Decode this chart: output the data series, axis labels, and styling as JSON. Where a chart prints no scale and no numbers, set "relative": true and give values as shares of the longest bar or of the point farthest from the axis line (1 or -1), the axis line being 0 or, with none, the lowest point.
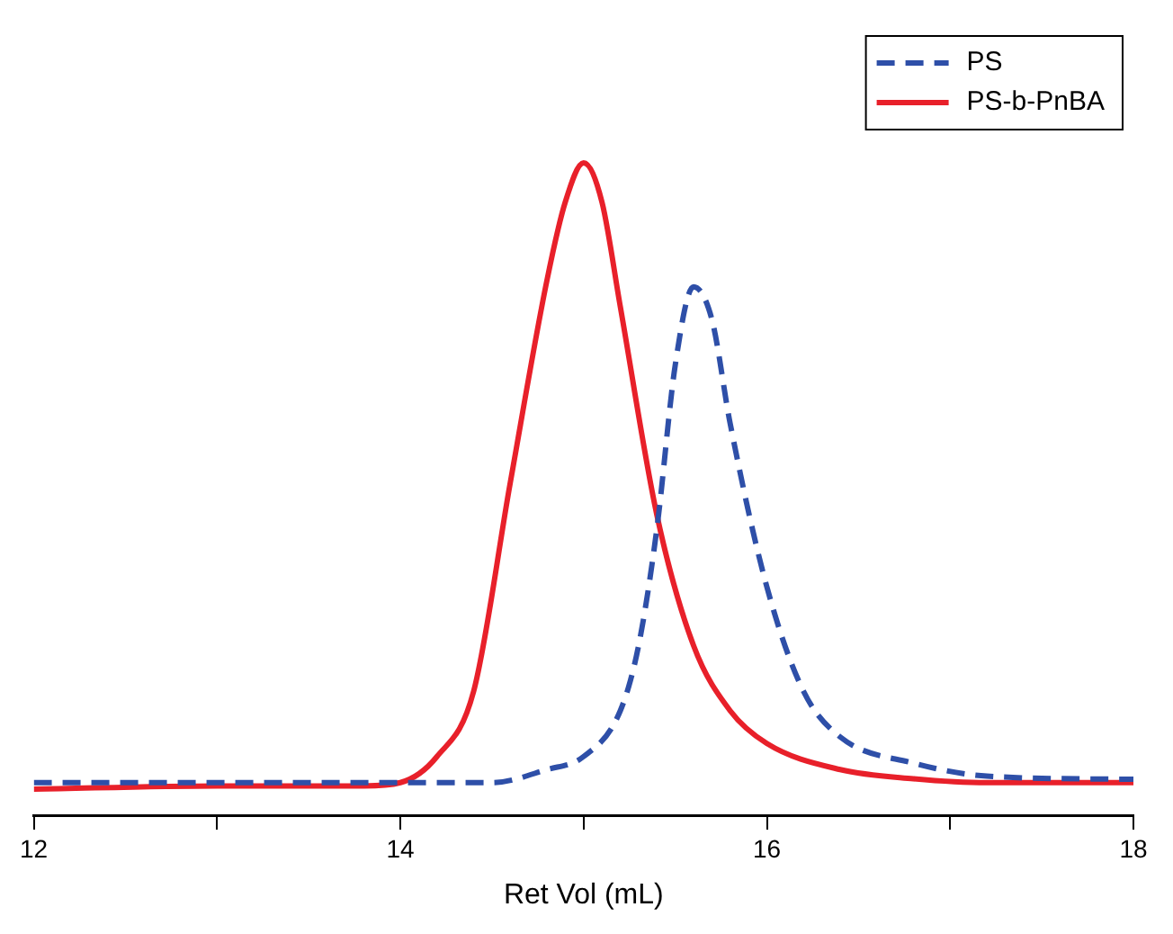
{
  "chart_data": {
    "type": "line",
    "xlabel": "Ret Vol (mL)",
    "relative": true,
    "xlim": [
      12,
      18
    ],
    "xticks": [
      12,
      {
        "value": 13,
        "label": null
      },
      14,
      {
        "value": 15,
        "label": null
      },
      16,
      {
        "value": 17,
        "label": null
      },
      18
    ],
    "grid": false,
    "legend": "top right",
    "marker": "none",
    "series": [
      {
        "name": "PS",
        "color": "#2e4fa8",
        "line_style": "dashed",
        "x": [
          12,
          13,
          14,
          14.5,
          14.8,
          15,
          15.2,
          15.3,
          15.4,
          15.5,
          15.6,
          15.7,
          15.8,
          16,
          16.2,
          16.4,
          16.8,
          17.2,
          18
        ],
        "values": [
          0.05,
          0.05,
          0.05,
          0.05,
          0.07,
          0.09,
          0.16,
          0.26,
          0.44,
          0.69,
          0.81,
          0.76,
          0.6,
          0.35,
          0.19,
          0.12,
          0.08,
          0.06,
          0.055
        ]
      },
      {
        "name": "PS-b-PnBA",
        "color": "#e8202a",
        "line_style": "solid",
        "x": [
          12,
          13,
          13.8,
          14,
          14.2,
          14.4,
          14.6,
          14.8,
          14.9,
          15,
          15.1,
          15.2,
          15.4,
          15.6,
          15.8,
          16,
          16.4,
          16.8,
          17.2,
          18
        ],
        "values": [
          0.04,
          0.045,
          0.045,
          0.05,
          0.09,
          0.19,
          0.51,
          0.82,
          0.94,
          1,
          0.94,
          0.78,
          0.46,
          0.26,
          0.16,
          0.11,
          0.07,
          0.056,
          0.05,
          0.05
        ]
      }
    ]
  }
}
